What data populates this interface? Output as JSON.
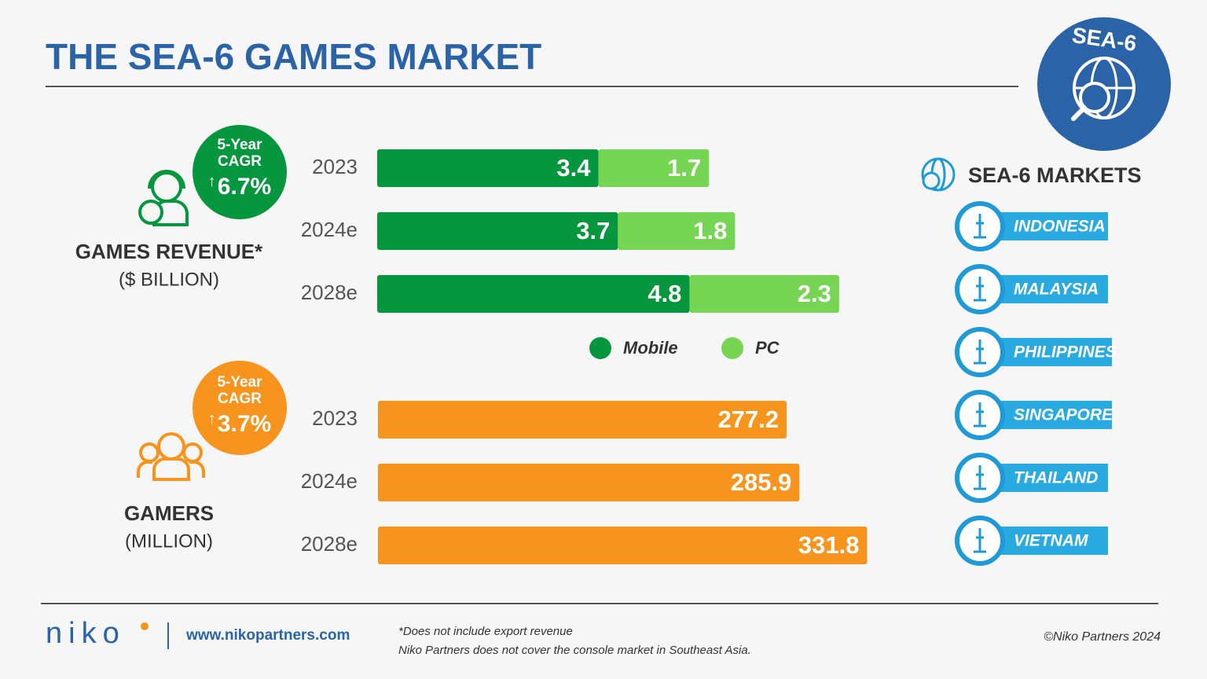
{
  "header": {
    "title": "THE SEA-6 GAMES MARKET",
    "badge": "SEA-6"
  },
  "chart_data": [
    {
      "type": "bar",
      "orientation": "horizontal",
      "stacked": true,
      "title": "GAMES REVENUE*",
      "subtitle": "($ BILLION)",
      "cagr_label": "5-Year CAGR",
      "cagr": "6.7%",
      "cagr_color": "#05963e",
      "categories": [
        "2023",
        "2024e",
        "2028e"
      ],
      "series": [
        {
          "name": "Mobile",
          "color": "#05963e",
          "values": [
            3.4,
            3.7,
            4.8
          ]
        },
        {
          "name": "PC",
          "color": "#76d653",
          "values": [
            1.7,
            1.8,
            2.3
          ]
        }
      ]
    },
    {
      "type": "bar",
      "orientation": "horizontal",
      "title": "GAMERS",
      "subtitle": "(MILLION)",
      "cagr_label": "5-Year CAGR",
      "cagr": "3.7%",
      "cagr_color": "#f7941d",
      "categories": [
        "2023",
        "2024e",
        "2028e"
      ],
      "color": "#f7941d",
      "values": [
        277.2,
        285.9,
        331.8
      ]
    }
  ],
  "markets": {
    "title": "SEA-6 MARKETS",
    "items": [
      "INDONESIA",
      "MALAYSIA",
      "PHILIPPINES",
      "SINGAPORE",
      "THAILAND",
      "VIETNAM"
    ]
  },
  "footer": {
    "logo": "niko",
    "url": "www.nikopartners.com",
    "notes": [
      "*Does not include export revenue",
      "Niko Partners does not cover the console market in Southeast Asia."
    ],
    "copyright": "©Niko Partners 2024"
  }
}
